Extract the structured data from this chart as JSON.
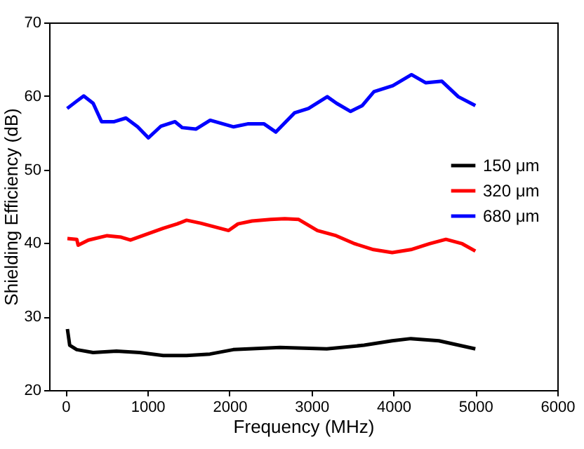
{
  "chart_data": {
    "type": "line",
    "xlabel": "Frequency (MHz)",
    "ylabel": "Shielding Efficiency (dB)",
    "xlim": [
      -200,
      6000
    ],
    "xticks": [
      0,
      1000,
      2000,
      3000,
      4000,
      5000,
      6000
    ],
    "ylim": [
      20,
      70
    ],
    "yticks": [
      20,
      30,
      40,
      50,
      60,
      70
    ],
    "grid": false,
    "legend": "right",
    "series": [
      {
        "name": "150 μm",
        "color": "#000000",
        "x": [
          23,
          51,
          137,
          336,
          621,
          906,
          1192,
          1477,
          1762,
          2047,
          2617,
          3187,
          3643,
          3985,
          4213,
          4555,
          5000
        ],
        "values": [
          28.3,
          26.1,
          25.5,
          25.1,
          25.3,
          25.1,
          24.7,
          24.7,
          24.9,
          25.5,
          25.8,
          25.6,
          26.1,
          26.7,
          27.0,
          26.7,
          25.6
        ]
      },
      {
        "name": "320 μm",
        "color": "#ff0000",
        "x": [
          23,
          137,
          154,
          279,
          507,
          678,
          792,
          941,
          1192,
          1363,
          1477,
          1648,
          1819,
          1990,
          2104,
          2275,
          2503,
          2674,
          2845,
          3073,
          3301,
          3529,
          3757,
          3985,
          4213,
          4441,
          4641,
          4840,
          5000
        ],
        "values": [
          40.6,
          40.5,
          39.7,
          40.4,
          41.0,
          40.8,
          40.4,
          41.0,
          42.0,
          42.6,
          43.1,
          42.7,
          42.2,
          41.7,
          42.6,
          43.0,
          43.2,
          43.3,
          43.2,
          41.7,
          41.0,
          39.9,
          39.1,
          38.7,
          39.1,
          39.9,
          40.5,
          39.9,
          38.9
        ]
      },
      {
        "name": "680 μm",
        "color": "#0000ff",
        "x": [
          20,
          137,
          222,
          337,
          440,
          594,
          737,
          880,
          1011,
          1165,
          1336,
          1423,
          1593,
          1765,
          2051,
          2222,
          2422,
          2565,
          2793,
          2964,
          3193,
          3307,
          3478,
          3621,
          3764,
          3993,
          4221,
          4393,
          4592,
          4792,
          5000
        ],
        "values": [
          58.3,
          59.3,
          60.0,
          59.0,
          56.5,
          56.5,
          57.0,
          55.8,
          54.3,
          55.9,
          56.5,
          55.7,
          55.5,
          56.7,
          55.8,
          56.2,
          56.2,
          55.1,
          57.7,
          58.3,
          59.9,
          59.0,
          57.9,
          58.7,
          60.6,
          61.4,
          62.9,
          61.8,
          62.0,
          59.9,
          58.7
        ]
      }
    ]
  }
}
